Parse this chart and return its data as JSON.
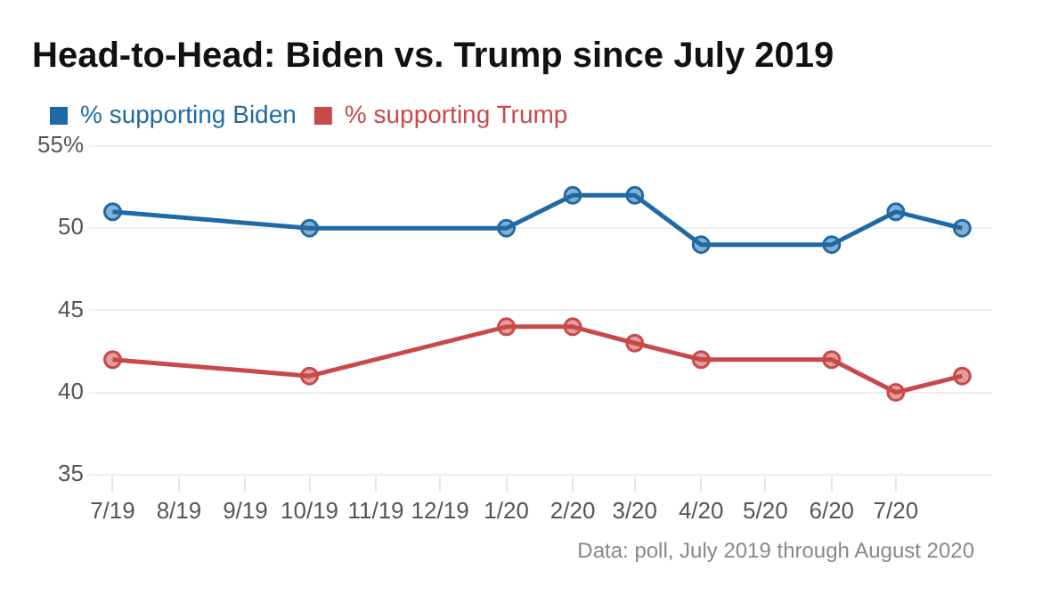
{
  "chart_data": {
    "type": "line",
    "title": "Head-to-Head: Biden vs. Trump since July 2019",
    "x": [
      "2019-07",
      "2019-10",
      "2020-01",
      "2020-02",
      "2020-03",
      "2020-04",
      "2020-06",
      "2020-07",
      "2020-08"
    ],
    "series": [
      {
        "name": "% supporting Biden",
        "color": "#1f6aa5",
        "values": [
          51,
          50,
          50,
          52,
          52,
          49,
          49,
          51,
          50
        ]
      },
      {
        "name": "% supporting Trump",
        "color": "#c9484a",
        "values": [
          42,
          41,
          44,
          44,
          43,
          42,
          42,
          40,
          41
        ]
      }
    ],
    "xlim": [
      "2019-06-20",
      "2020-08-15"
    ],
    "xticks": [
      {
        "value": "2019-07",
        "label": "7/19"
      },
      {
        "value": "2019-08",
        "label": "8/19"
      },
      {
        "value": "2019-09",
        "label": "9/19"
      },
      {
        "value": "2019-10",
        "label": "10/19"
      },
      {
        "value": "2019-11",
        "label": "11/19"
      },
      {
        "value": "2019-12",
        "label": "12/19"
      },
      {
        "value": "2020-01",
        "label": "1/20"
      },
      {
        "value": "2020-02",
        "label": "2/20"
      },
      {
        "value": "2020-03",
        "label": "3/20"
      },
      {
        "value": "2020-04",
        "label": "4/20"
      },
      {
        "value": "2020-05",
        "label": "5/20"
      },
      {
        "value": "2020-06",
        "label": "6/20"
      },
      {
        "value": "2020-07",
        "label": "7/20"
      }
    ],
    "ylim": [
      35,
      55
    ],
    "yticks": [
      35,
      40,
      45,
      50,
      {
        "value": 55,
        "label": "55%"
      }
    ],
    "grid": "y",
    "legend": "top left",
    "marker": "circle",
    "line_style": "solid",
    "annotations": [
      "Data: poll, July 2019 through August 2020"
    ]
  }
}
